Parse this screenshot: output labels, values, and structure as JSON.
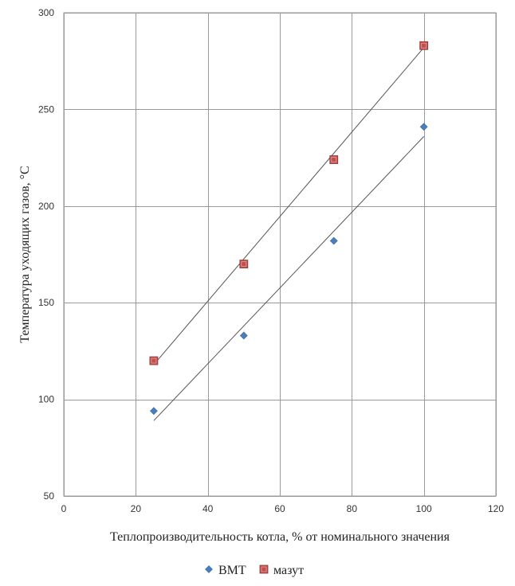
{
  "chart_data": {
    "type": "scatter",
    "title": "",
    "xlabel": "Теплопроизводительность котла, % от номинального значения",
    "ylabel": "Температура уходящих газов, °С",
    "xlim": [
      0,
      120
    ],
    "ylim": [
      50,
      300
    ],
    "xticks": [
      0,
      20,
      40,
      60,
      80,
      100,
      120
    ],
    "yticks": [
      50,
      100,
      150,
      200,
      250,
      300
    ],
    "xtick_labels": [
      "0",
      "20",
      "40",
      "60",
      "80",
      "100",
      "120"
    ],
    "ytick_labels": [
      "50",
      "100",
      "150",
      "200",
      "250",
      "300"
    ],
    "grid": true,
    "legend_position": "bottom",
    "series": [
      {
        "name": "ВМТ",
        "marker": "diamond",
        "color": "#4a7ebb",
        "x": [
          25,
          50,
          75,
          100
        ],
        "y": [
          94,
          133,
          182,
          241
        ],
        "trendline": {
          "x": [
            25,
            100
          ],
          "y": [
            89,
            236
          ]
        }
      },
      {
        "name": "мазут",
        "marker": "square",
        "color": "#c0504d",
        "x": [
          25,
          50,
          75,
          100
        ],
        "y": [
          120,
          170,
          224,
          283
        ],
        "trendline": {
          "x": [
            25,
            100
          ],
          "y": [
            118,
            282
          ]
        }
      }
    ]
  }
}
